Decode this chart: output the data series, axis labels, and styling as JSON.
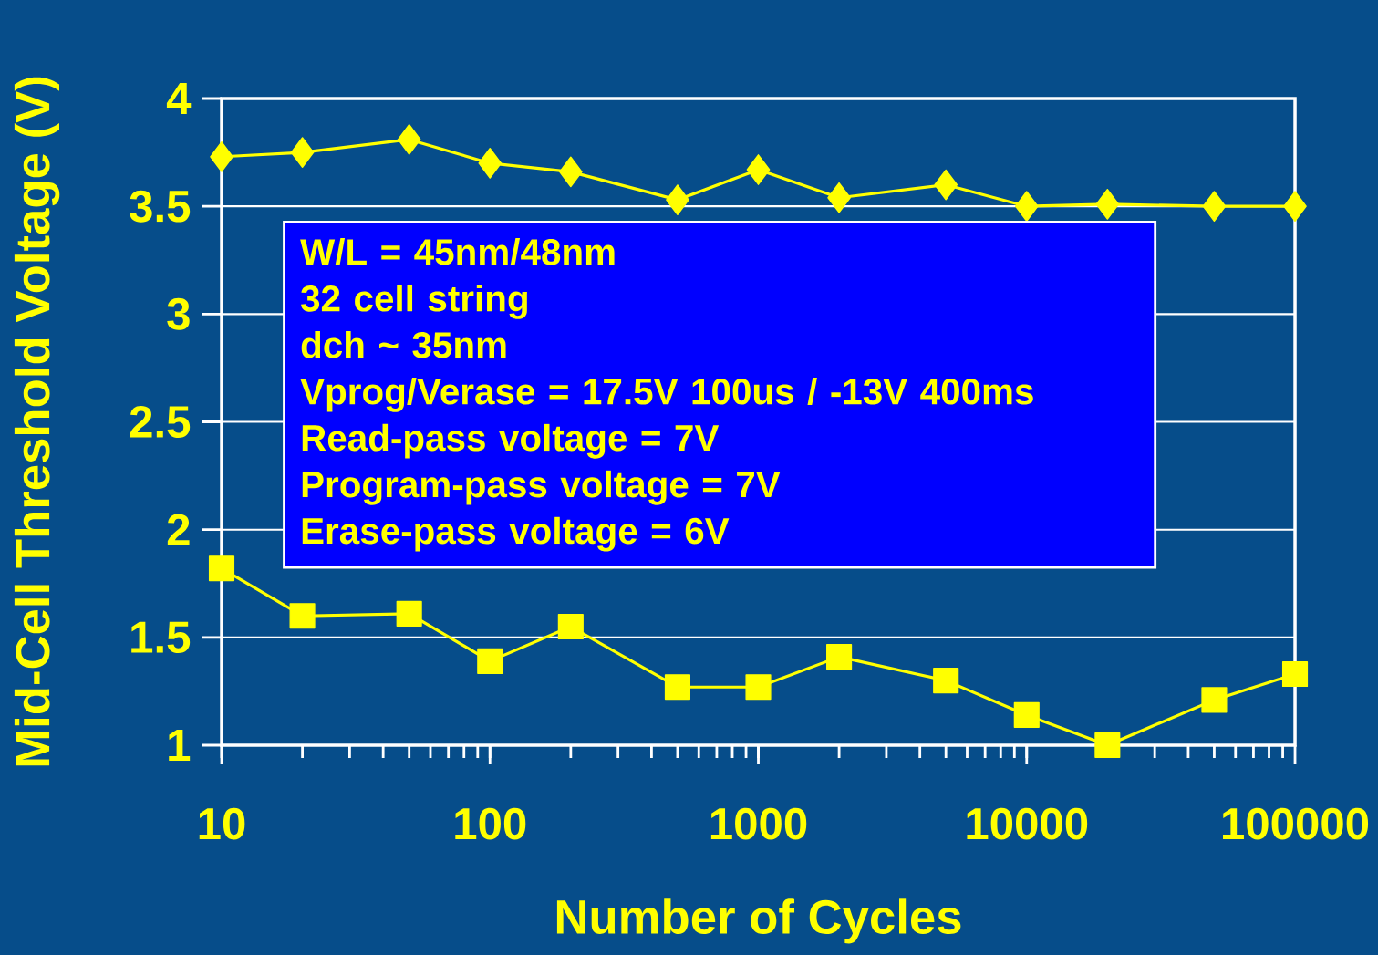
{
  "chart_data": {
    "type": "line",
    "xlabel": "Number of Cycles",
    "ylabel": "Mid-Cell Threshold Voltage (V)",
    "log": "x",
    "xlim": [
      10,
      100000
    ],
    "xticks": [
      10,
      100,
      1000,
      10000,
      100000
    ],
    "ylim": [
      1,
      4
    ],
    "yticks": [
      1,
      1.5,
      2,
      2.5,
      3,
      3.5,
      4
    ],
    "grid": "y",
    "x": [
      10,
      20,
      50,
      100,
      200,
      500,
      1000,
      2000,
      5000,
      10000,
      20000,
      50000,
      100000
    ],
    "series": [
      {
        "color": "#ffff00",
        "marker": "diamond",
        "values": [
          3.73,
          3.75,
          3.81,
          3.7,
          3.66,
          3.53,
          3.67,
          3.54,
          3.6,
          3.5,
          3.51,
          3.5,
          3.5
        ]
      },
      {
        "color": "#ffff00",
        "marker": "square",
        "values": [
          1.82,
          1.6,
          1.61,
          1.39,
          1.55,
          1.27,
          1.27,
          1.41,
          1.3,
          1.14,
          1.0,
          1.21,
          1.33
        ]
      }
    ],
    "annotations": [
      "W/L = 45nm/48nm",
      "32 cell string",
      "dch ~ 35nm",
      "Vprog/Verase = 17.5V 100us / -13V 400ms",
      "Read-pass voltage = 7V",
      "Program-pass voltage = 7V",
      "Erase-pass voltage = 6V"
    ]
  }
}
